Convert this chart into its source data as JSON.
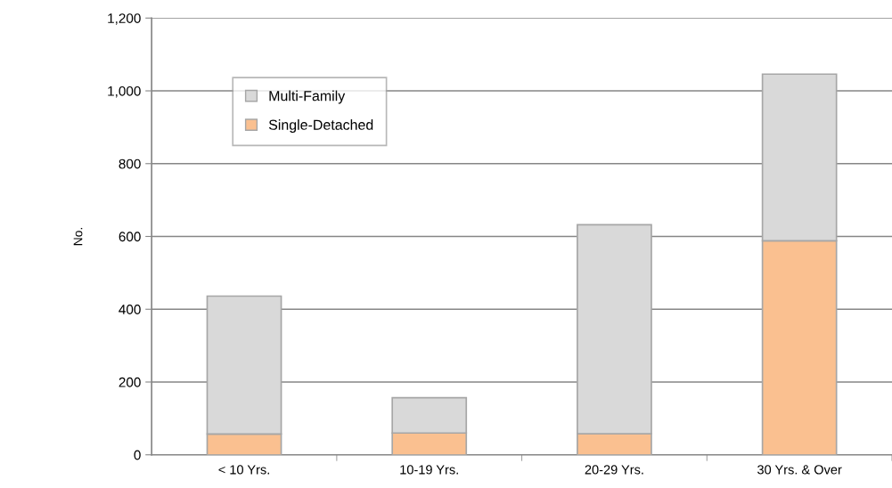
{
  "chart_data": {
    "type": "bar",
    "ylabel": "No.",
    "categories": [
      "< 10 Yrs.",
      "10-19 Yrs.",
      "20-29 Yrs.",
      "30 Yrs. & Over"
    ],
    "stacked": true,
    "series": [
      {
        "name": "Single-Detached",
        "color": "#fac090",
        "values": [
          57,
          60,
          58,
          588
        ]
      },
      {
        "name": "Multi-Family",
        "color": "#d9d9d9",
        "values": [
          379,
          97,
          574,
          458
        ]
      }
    ],
    "ylim": [
      0,
      1200
    ],
    "yticks": [
      0,
      {
        "value": 200,
        "label": "200"
      },
      {
        "value": 400,
        "label": "400"
      },
      {
        "value": 600,
        "label": "600"
      },
      {
        "value": 800,
        "label": "800"
      },
      {
        "value": 1000,
        "label": "1,000"
      },
      {
        "value": 1200,
        "label": "1,200"
      }
    ],
    "grid": "y",
    "legend": "top left"
  }
}
